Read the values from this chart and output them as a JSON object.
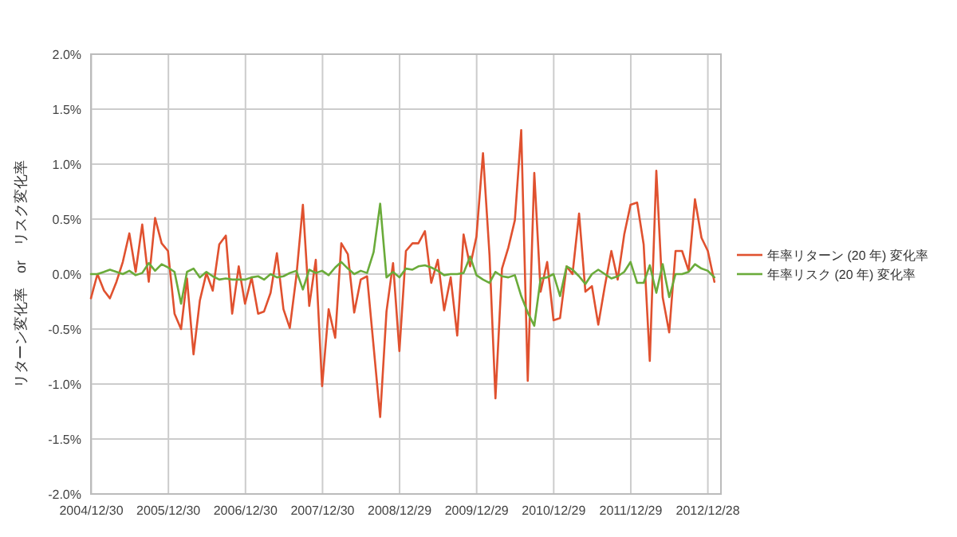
{
  "chart_data": {
    "type": "line",
    "ylabel": "リターン変化率　or　リスク変化率",
    "x": [
      "2004-12-28",
      "2005-01-28",
      "2005-02-28",
      "2005-03-28",
      "2005-04-28",
      "2005-05-28",
      "2005-06-28",
      "2005-07-28",
      "2005-08-28",
      "2005-09-28",
      "2005-10-28",
      "2005-11-28",
      "2005-12-28",
      "2006-01-28",
      "2006-02-28",
      "2006-03-28",
      "2006-04-28",
      "2006-05-28",
      "2006-06-28",
      "2006-07-28",
      "2006-08-28",
      "2006-09-28",
      "2006-10-28",
      "2006-11-28",
      "2006-12-28",
      "2007-01-28",
      "2007-02-28",
      "2007-03-28",
      "2007-04-28",
      "2007-05-28",
      "2007-06-28",
      "2007-07-28",
      "2007-08-28",
      "2007-09-28",
      "2007-10-28",
      "2007-11-28",
      "2007-12-28",
      "2008-01-28",
      "2008-02-28",
      "2008-03-28",
      "2008-04-28",
      "2008-05-28",
      "2008-06-28",
      "2008-07-28",
      "2008-08-28",
      "2008-09-28",
      "2008-10-28",
      "2008-11-28",
      "2008-12-28",
      "2009-01-28",
      "2009-02-28",
      "2009-03-28",
      "2009-04-28",
      "2009-05-28",
      "2009-06-28",
      "2009-07-28",
      "2009-08-28",
      "2009-09-28",
      "2009-10-28",
      "2009-11-28",
      "2009-12-28",
      "2010-01-28",
      "2010-02-28",
      "2010-03-28",
      "2010-04-28",
      "2010-05-28",
      "2010-06-28",
      "2010-07-28",
      "2010-08-28",
      "2010-09-28",
      "2010-10-28",
      "2010-11-28",
      "2010-12-28",
      "2011-01-28",
      "2011-02-28",
      "2011-03-28",
      "2011-04-28",
      "2011-05-28",
      "2011-06-28",
      "2011-07-28",
      "2011-08-28",
      "2011-09-28",
      "2011-10-28",
      "2011-11-28",
      "2011-12-28",
      "2012-01-28",
      "2012-02-28",
      "2012-03-28",
      "2012-04-28",
      "2012-05-28",
      "2012-06-28",
      "2012-07-28",
      "2012-08-28",
      "2012-09-28",
      "2012-10-28",
      "2012-11-28",
      "2012-12-28",
      "2013-01-28"
    ],
    "series": [
      {
        "name": "年率リターン (20 年) 変化率",
        "color": "#e0512f",
        "values": [
          -0.22,
          0.0,
          -0.15,
          -0.22,
          -0.07,
          0.11,
          0.37,
          0.02,
          0.45,
          -0.07,
          0.51,
          0.28,
          0.21,
          -0.36,
          -0.5,
          -0.04,
          -0.73,
          -0.24,
          0.01,
          -0.15,
          0.27,
          0.35,
          -0.36,
          0.07,
          -0.27,
          -0.03,
          -0.36,
          -0.34,
          -0.17,
          0.19,
          -0.32,
          -0.49,
          -0.02,
          0.63,
          -0.29,
          0.13,
          -1.02,
          -0.32,
          -0.58,
          0.28,
          0.18,
          -0.35,
          -0.05,
          -0.02,
          -0.66,
          -1.3,
          -0.34,
          0.1,
          -0.7,
          0.21,
          0.28,
          0.28,
          0.39,
          -0.08,
          0.13,
          -0.33,
          -0.03,
          -0.56,
          0.36,
          0.07,
          0.34,
          1.1,
          0.17,
          -1.13,
          0.05,
          0.24,
          0.49,
          1.31,
          -0.97,
          0.92,
          -0.16,
          0.11,
          -0.42,
          -0.4,
          0.07,
          0.0,
          0.55,
          -0.16,
          -0.11,
          -0.46,
          -0.11,
          0.21,
          -0.05,
          0.36,
          0.63,
          0.65,
          0.27,
          -0.79,
          0.94,
          -0.21,
          -0.53,
          0.21,
          0.21,
          0.03,
          0.68,
          0.33,
          0.21,
          -0.07
        ]
      },
      {
        "name": "年率リスク (20 年) 変化率",
        "color": "#6aab3a",
        "values": [
          0,
          0,
          0.02,
          0.04,
          0.02,
          0,
          0.03,
          -0.01,
          0.01,
          0.1,
          0.03,
          0.09,
          0.06,
          0.02,
          -0.27,
          0.02,
          0.05,
          -0.03,
          0.02,
          -0.02,
          -0.05,
          -0.04,
          -0.05,
          -0.05,
          -0.05,
          -0.03,
          -0.02,
          -0.05,
          0.0,
          -0.03,
          -0.02,
          0.01,
          0.03,
          -0.14,
          0.04,
          0.01,
          0.03,
          -0.01,
          0.06,
          0.11,
          0.05,
          0.0,
          0.03,
          0.01,
          0.2,
          0.64,
          -0.03,
          0.02,
          -0.03,
          0.05,
          0.04,
          0.07,
          0.08,
          0.06,
          0.03,
          -0.01,
          0.0,
          0.0,
          0.01,
          0.16,
          -0.01,
          -0.05,
          -0.08,
          0.02,
          -0.02,
          -0.03,
          -0.01,
          -0.2,
          -0.35,
          -0.47,
          -0.04,
          -0.03,
          0.0,
          -0.2,
          0.07,
          0.04,
          -0.02,
          -0.09,
          0.0,
          0.04,
          0.0,
          -0.04,
          -0.02,
          0.02,
          0.11,
          -0.08,
          -0.08,
          0.08,
          -0.17,
          0.09,
          -0.21,
          0.0,
          0.0,
          0.02,
          0.09,
          0.05,
          0.03,
          -0.03
        ]
      }
    ],
    "xlim": [
      "2004-12-28",
      "2013-02-28"
    ],
    "xticks": [
      {
        "value": "2004-12-30",
        "label": "2004/12/30"
      },
      {
        "value": "2005-12-30",
        "label": "2005/12/30"
      },
      {
        "value": "2006-12-30",
        "label": "2006/12/30"
      },
      {
        "value": "2007-12-30",
        "label": "2007/12/30"
      },
      {
        "value": "2008-12-29",
        "label": "2008/12/29"
      },
      {
        "value": "2009-12-29",
        "label": "2009/12/29"
      },
      {
        "value": "2010-12-29",
        "label": "2010/12/29"
      },
      {
        "value": "2011-12-29",
        "label": "2011/12/29"
      },
      {
        "value": "2012-12-28",
        "label": "2012/12/28"
      }
    ],
    "ylim": [
      -2,
      2
    ],
    "yticks": [
      {
        "value": -2,
        "label": "-2.0%"
      },
      {
        "value": -1.5,
        "label": "-1.5%"
      },
      {
        "value": -1,
        "label": "-1.0%"
      },
      {
        "value": -0.5,
        "label": "-0.5%"
      },
      {
        "value": 0,
        "label": "0.0%"
      },
      {
        "value": 0.5,
        "label": "0.5%"
      },
      {
        "value": 1,
        "label": "1.0%"
      },
      {
        "value": 1.5,
        "label": "1.5%"
      },
      {
        "value": 2,
        "label": "2.0%"
      }
    ],
    "grid": true,
    "legend": "right",
    "marker": "none",
    "line_style": "solid"
  }
}
